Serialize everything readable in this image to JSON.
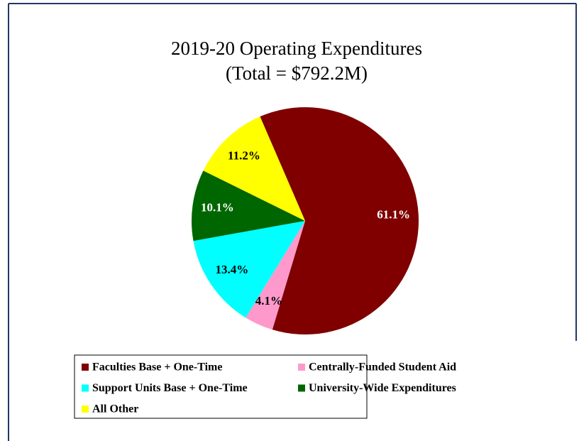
{
  "chart_data": {
    "type": "pie",
    "title": "2019-20 Operating Expenditures",
    "subtitle": "(Total = $792.2M)",
    "categories": [
      "Faculties Base + One-Time",
      "Centrally-Funded Student Aid",
      "Support Units Base + One-Time",
      "University-Wide Expenditures",
      "All Other"
    ],
    "values": [
      61.1,
      4.1,
      13.4,
      10.1,
      11.2
    ],
    "value_labels": [
      "61.1%",
      "4.1%",
      "13.4%",
      "10.1%",
      "11.2%"
    ],
    "colors": [
      "#800000",
      "#ff99cc",
      "#00ffff",
      "#006600",
      "#ffff00"
    ],
    "label_colors": [
      "#ffffff",
      "#000000",
      "#000000",
      "#ffffff",
      "#000000"
    ]
  }
}
